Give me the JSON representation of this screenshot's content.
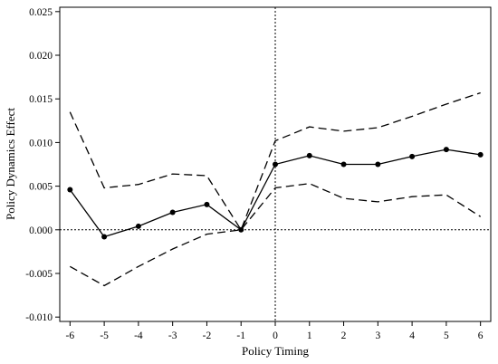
{
  "chart_data": {
    "type": "line",
    "title": "",
    "xlabel": "Policy Timing",
    "ylabel": "Policy Dynamics Effect",
    "x": [
      -6,
      -5,
      -4,
      -3,
      -2,
      -1,
      0,
      1,
      2,
      3,
      4,
      5,
      6
    ],
    "xlim": [
      -6.3,
      6.3
    ],
    "ylim": [
      -0.0105,
      0.0255
    ],
    "yticks": [
      -0.01,
      -0.005,
      0.0,
      0.005,
      0.01,
      0.015,
      0.02,
      0.025
    ],
    "ytick_labels": [
      "-0.010",
      "-0.005",
      "0.000",
      "0.005",
      "0.010",
      "0.015",
      "0.020",
      "0.025"
    ],
    "xticks": [
      -6,
      -5,
      -4,
      -3,
      -2,
      -1,
      0,
      1,
      2,
      3,
      4,
      5,
      6
    ],
    "xtick_labels": [
      "-6",
      "-5",
      "-4",
      "-3",
      "-2",
      "-1",
      "0",
      "1",
      "2",
      "3",
      "4",
      "5",
      "6"
    ],
    "grid": false,
    "reference_lines": {
      "y": 0,
      "x": 0,
      "style": "dotted"
    },
    "series": [
      {
        "role": "estimate",
        "style": "solid-with-markers",
        "values": [
          0.0046,
          -0.0008,
          0.0004,
          0.002,
          0.0029,
          0.0,
          0.0075,
          0.0085,
          0.0075,
          0.0075,
          0.0084,
          0.0092,
          0.0086
        ]
      },
      {
        "role": "upper-ci",
        "style": "dashed",
        "values": [
          0.0135,
          0.0048,
          0.0052,
          0.0064,
          0.0062,
          0.0,
          0.0102,
          0.0118,
          0.0113,
          0.0117,
          0.013,
          0.0144,
          0.0157
        ]
      },
      {
        "role": "lower-ci",
        "style": "dashed",
        "values": [
          -0.0042,
          -0.0064,
          -0.0042,
          -0.0022,
          -0.0005,
          0.0,
          0.0048,
          0.0053,
          0.0036,
          0.0032,
          0.0038,
          0.004,
          0.0015
        ]
      }
    ]
  }
}
